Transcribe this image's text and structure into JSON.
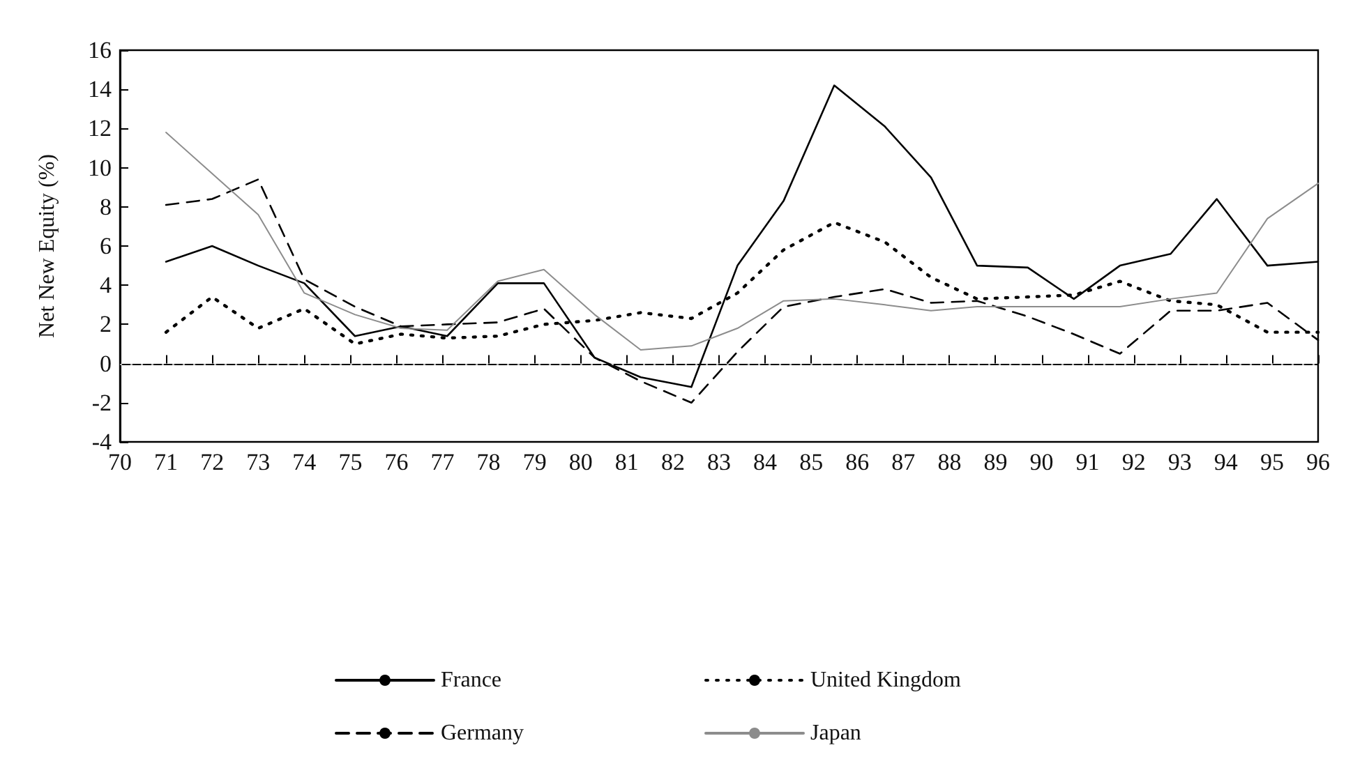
{
  "chart_data": {
    "type": "line",
    "ylabel": "Net New Equity (%)",
    "x": [
      71,
      72,
      73,
      74,
      75.1,
      76.1,
      77.1,
      78.2,
      79.2,
      80.3,
      81.3,
      82.4,
      83.4,
      84.4,
      85.5,
      86.6,
      87.6,
      88.6,
      89.7,
      90.7,
      91.7,
      92.8,
      93.8,
      94.9,
      96
    ],
    "series": [
      {
        "name": "France",
        "color": "#000000",
        "line_style": "solid",
        "values": [
          5.2,
          6.0,
          5.0,
          4.1,
          1.4,
          1.9,
          1.4,
          4.1,
          4.1,
          0.3,
          -0.7,
          -1.2,
          5.0,
          8.3,
          14.2,
          12.1,
          9.5,
          5.0,
          4.9,
          3.3,
          5.0,
          5.6,
          8.4,
          5.0,
          5.2
        ]
      },
      {
        "name": "United Kingdom",
        "color": "#000000",
        "line_style": "dotted",
        "values": [
          1.6,
          3.4,
          1.8,
          2.8,
          1.0,
          1.5,
          1.3,
          1.4,
          2.0,
          2.2,
          2.6,
          2.3,
          3.6,
          5.8,
          7.2,
          6.2,
          4.4,
          3.3,
          3.4,
          3.5,
          4.2,
          3.2,
          3.0,
          1.6,
          1.6
        ]
      },
      {
        "name": "Germany",
        "color": "#000000",
        "line_style": "dashed",
        "values": [
          8.1,
          8.4,
          9.4,
          4.3,
          2.9,
          1.9,
          2.0,
          2.1,
          2.8,
          0.3,
          -0.9,
          -2.0,
          0.6,
          2.9,
          3.4,
          3.8,
          3.1,
          3.2,
          2.4,
          1.5,
          0.5,
          2.7,
          2.7,
          3.1,
          1.2
        ]
      },
      {
        "name": "Japan",
        "color": "#8c8c8c",
        "line_style": "solid",
        "values": [
          11.8,
          9.7,
          7.6,
          3.6,
          2.5,
          1.8,
          1.7,
          4.2,
          4.8,
          2.5,
          0.7,
          0.9,
          1.8,
          3.2,
          3.3,
          3.0,
          2.7,
          2.9,
          2.9,
          2.9,
          2.9,
          3.3,
          3.6,
          7.4,
          9.2
        ]
      }
    ],
    "xlim": [
      70,
      96
    ],
    "xticks": [
      70,
      71,
      72,
      73,
      74,
      75,
      76,
      77,
      78,
      79,
      80,
      81,
      82,
      83,
      84,
      85,
      86,
      87,
      88,
      89,
      90,
      91,
      92,
      93,
      94,
      95,
      96
    ],
    "ylim": [
      -4,
      16
    ],
    "yticks": [
      -4,
      -2,
      0,
      2,
      4,
      6,
      8,
      10,
      12,
      14,
      16
    ],
    "ref_lines": [
      {
        "axis": "y",
        "value": 0,
        "color": "#b0b0b0",
        "line_style": "dotted"
      }
    ],
    "grid": false,
    "legend": "bottom",
    "marker": "none"
  }
}
